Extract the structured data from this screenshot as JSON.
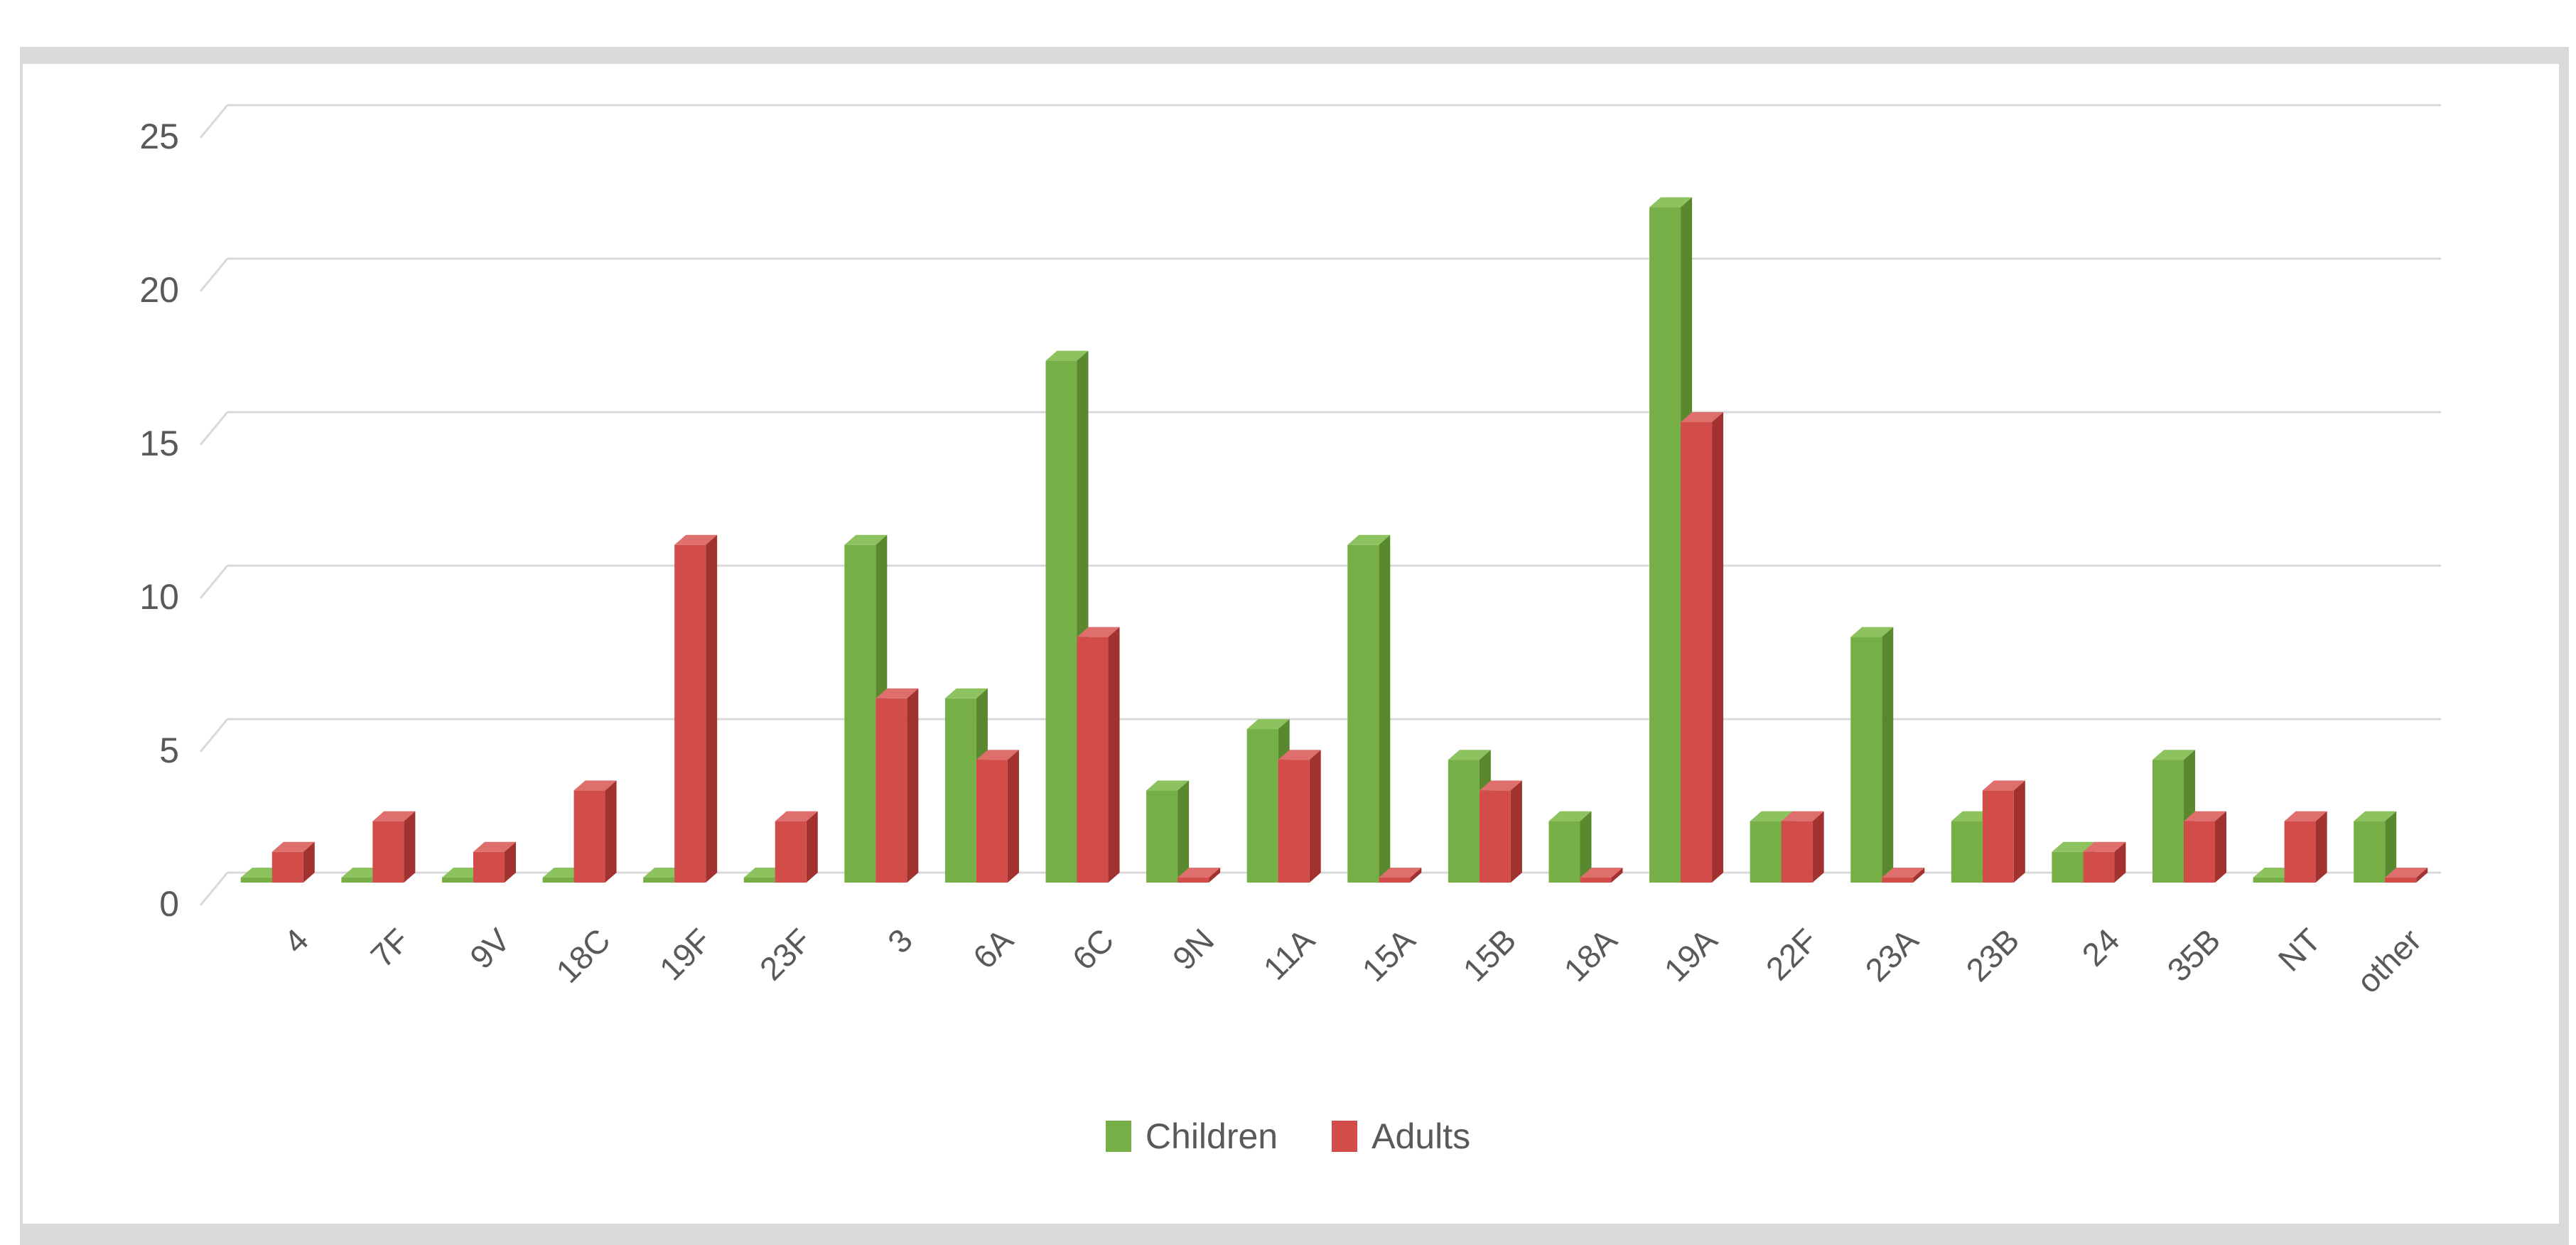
{
  "chart_data": {
    "type": "bar",
    "style": "3d-clustered-column",
    "title": "",
    "xlabel": "",
    "ylabel": "",
    "categories": [
      "4",
      "7F",
      "9V",
      "18C",
      "19F",
      "23F",
      "3",
      "6A",
      "6C",
      "9N",
      "11A",
      "15A",
      "15B",
      "18A",
      "19A",
      "22F",
      "23A",
      "23B",
      "24",
      "35B",
      "NT",
      "other"
    ],
    "series": [
      {
        "name": "Children",
        "color": "#76AF45",
        "color_top": "#8DC35E",
        "color_side": "#59882F",
        "values": [
          0,
          0,
          0,
          0,
          0,
          0,
          11,
          6,
          17,
          3,
          5,
          11,
          4,
          2,
          22,
          2,
          8,
          2,
          1,
          4,
          0,
          2
        ]
      },
      {
        "name": "Adults",
        "color": "#D24C4A",
        "color_top": "#DE6F6D",
        "color_side": "#A23230",
        "values": [
          1,
          2,
          1,
          3,
          11,
          2,
          6,
          4,
          8,
          0,
          4,
          0,
          3,
          0,
          15,
          2,
          0,
          3,
          1,
          2,
          2,
          0
        ]
      }
    ],
    "y_ticks": [
      0,
      5,
      10,
      15,
      20,
      25
    ],
    "ylim": [
      0,
      25
    ],
    "grid": true,
    "gridline_color": "#D9D9D9",
    "axis_text_color": "#595959",
    "legend_position": "bottom-center"
  },
  "legend": {
    "items": [
      {
        "label": "Children"
      },
      {
        "label": "Adults"
      }
    ]
  }
}
